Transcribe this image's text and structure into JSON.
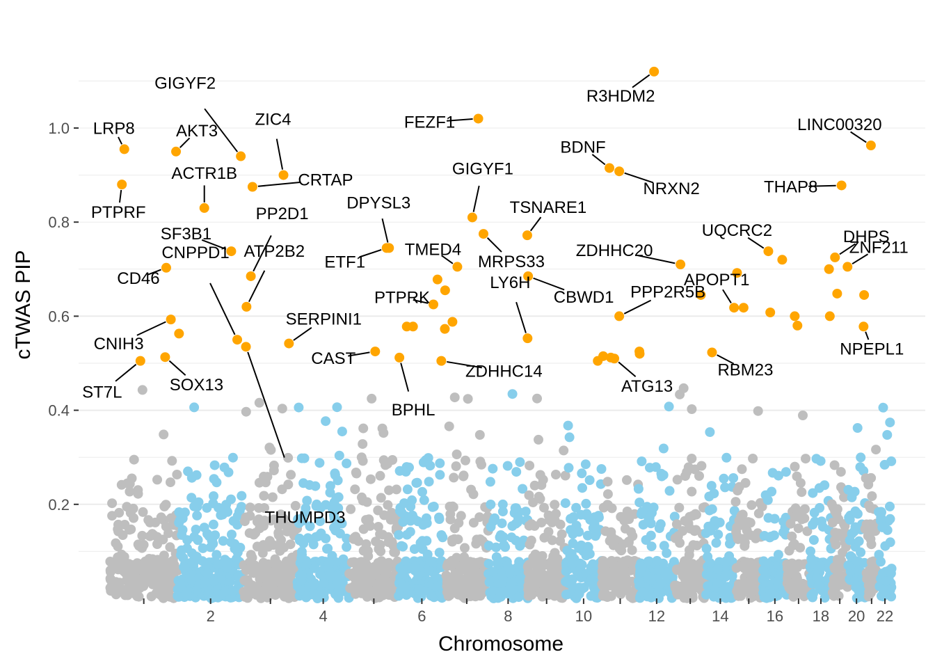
{
  "colors": {
    "odd_chromosome": "#bebebe",
    "even_chromosome": "#87ceeb",
    "highlight": "#ffa500",
    "grid": "#ebebeb",
    "axis_text": "#4d4d4d"
  },
  "chart_data": {
    "type": "scatter",
    "subtype": "manhattan",
    "title": "",
    "xlabel": "Chromosome",
    "ylabel": "cTWAS PIP",
    "ylim": [
      0,
      1.12
    ],
    "yticks": [
      0.2,
      0.4,
      0.6,
      0.8,
      1.0
    ],
    "ytick_labels": [
      "0.2",
      "0.4",
      "0.6",
      "0.8",
      "1.0"
    ],
    "xticks_labeled": [
      {
        "chr": 2,
        "label": "2"
      },
      {
        "chr": 4,
        "label": "4"
      },
      {
        "chr": 6,
        "label": "6"
      },
      {
        "chr": 8,
        "label": "8"
      },
      {
        "chr": 10,
        "label": "10"
      },
      {
        "chr": 12,
        "label": "12"
      },
      {
        "chr": 14,
        "label": "14"
      },
      {
        "chr": 16,
        "label": "16"
      },
      {
        "chr": 18,
        "label": "18"
      },
      {
        "chr": 20,
        "label": "20"
      },
      {
        "chr": 22,
        "label": "22"
      }
    ],
    "chromosome_span_mb": [
      {
        "chr": 1,
        "start": 0,
        "end": 249
      },
      {
        "chr": 2,
        "start": 249,
        "end": 491
      },
      {
        "chr": 3,
        "start": 491,
        "end": 689
      },
      {
        "chr": 4,
        "start": 689,
        "end": 879
      },
      {
        "chr": 5,
        "start": 879,
        "end": 1061
      },
      {
        "chr": 6,
        "start": 1061,
        "end": 1232
      },
      {
        "chr": 7,
        "start": 1232,
        "end": 1391
      },
      {
        "chr": 8,
        "start": 1391,
        "end": 1536
      },
      {
        "chr": 9,
        "start": 1536,
        "end": 1674
      },
      {
        "chr": 10,
        "start": 1674,
        "end": 1808
      },
      {
        "chr": 11,
        "start": 1808,
        "end": 1943
      },
      {
        "chr": 12,
        "start": 1943,
        "end": 2076
      },
      {
        "chr": 13,
        "start": 2076,
        "end": 2190
      },
      {
        "chr": 14,
        "start": 2190,
        "end": 2297
      },
      {
        "chr": 15,
        "start": 2297,
        "end": 2399
      },
      {
        "chr": 16,
        "start": 2399,
        "end": 2489
      },
      {
        "chr": 17,
        "start": 2489,
        "end": 2573
      },
      {
        "chr": 18,
        "start": 2573,
        "end": 2653
      },
      {
        "chr": 19,
        "start": 2653,
        "end": 2712
      },
      {
        "chr": 20,
        "start": 2712,
        "end": 2776
      },
      {
        "chr": 21,
        "start": 2776,
        "end": 2823
      },
      {
        "chr": 22,
        "start": 2823,
        "end": 2874
      }
    ],
    "highlight_threshold": 0.5,
    "background_points_note": "Dense background of genes with low PIP (mostly below 0.45), coloured alternately grey (odd chromosomes) and sky blue (even chromosomes).",
    "highlighted_genes": [
      {
        "gene": "LRP8",
        "chr": 1,
        "pos_mb": 53,
        "pip": 0.955,
        "label": "LRP8"
      },
      {
        "gene": "PTPRF",
        "chr": 1,
        "pos_mb": 44,
        "pip": 0.88,
        "label": "PTPRF"
      },
      {
        "gene": "CD46",
        "chr": 1,
        "pos_mb": 207,
        "pip": 0.703,
        "label": "CD46"
      },
      {
        "gene": "CNIH3",
        "chr": 1,
        "pos_mb": 224,
        "pip": 0.593,
        "label": "CNIH3"
      },
      {
        "gene": "ST7L",
        "chr": 1,
        "pos_mb": 112,
        "pip": 0.505,
        "label": "ST7L"
      },
      {
        "gene": "AKT3",
        "chr": 1,
        "pos_mb": 243,
        "pip": 0.95,
        "label": "AKT3"
      },
      {
        "gene": "SOX13",
        "chr": 1,
        "pos_mb": 203,
        "pip": 0.513,
        "label": "SOX13"
      },
      {
        "gene": "ACTR1B",
        "chr": 2,
        "pos_mb": 98,
        "pip": 0.83,
        "label": "ACTR1B"
      },
      {
        "gene": "SF3B1",
        "chr": 2,
        "pos_mb": 197,
        "pip": 0.738,
        "label": "SF3B1"
      },
      {
        "gene": "GIGYF2",
        "chr": 2,
        "pos_mb": 232,
        "pip": 0.94,
        "label": "GIGYF2"
      },
      {
        "gene": "CNPPD1",
        "chr": 2,
        "pos_mb": 219,
        "pip": 0.55,
        "label": "CNPPD1"
      },
      {
        "gene": "THUMPD3",
        "chr": 3,
        "pos_mb": 9,
        "pip": 0.535,
        "label": "THUMPD3"
      },
      {
        "gene": "CRTAP",
        "chr": 3,
        "pos_mb": 33,
        "pip": 0.875,
        "label": "CRTAP"
      },
      {
        "gene": "PP2D1",
        "chr": 3,
        "pos_mb": 27,
        "pip": 0.685,
        "label": "PP2D1"
      },
      {
        "gene": "ATP2B2",
        "chr": 3,
        "pos_mb": 11,
        "pip": 0.62,
        "label": "ATP2B2"
      },
      {
        "gene": "ZIC4",
        "chr": 3,
        "pos_mb": 147,
        "pip": 0.9,
        "label": "ZIC4"
      },
      {
        "gene": "SERPINI1",
        "chr": 3,
        "pos_mb": 167,
        "pip": 0.542,
        "label": "SERPINI1"
      },
      {
        "gene": "CAST",
        "chr": 5,
        "pos_mb": 96,
        "pip": 0.525,
        "label": "CAST"
      },
      {
        "gene": "DPYSL3",
        "chr": 5,
        "pos_mb": 147,
        "pip": 0.745,
        "label": "DPYSL3"
      },
      {
        "gene": "ETF1",
        "chr": 5,
        "pos_mb": 138,
        "pip": 0.745,
        "label": "ETF1"
      },
      {
        "gene": "BPHL",
        "chr": 6,
        "pos_mb": 3,
        "pip": 0.512,
        "label": "BPHL"
      },
      {
        "gene": "PTPRK",
        "chr": 6,
        "pos_mb": 128,
        "pip": 0.625,
        "label": "PTPRK"
      },
      {
        "gene": "TMED4",
        "chr": 7,
        "pos_mb": 45,
        "pip": 0.705,
        "label": "TMED4"
      },
      {
        "gene": "ZDHHC14",
        "chr": 6,
        "pos_mb": 157,
        "pip": 0.505,
        "label": "ZDHHC14"
      },
      {
        "gene": "FEZF1",
        "chr": 7,
        "pos_mb": 122,
        "pip": 1.02,
        "label": "FEZF1"
      },
      {
        "gene": "GIGYF1",
        "chr": 7,
        "pos_mb": 100,
        "pip": 0.81,
        "label": "GIGYF1"
      },
      {
        "gene": "MRPS33",
        "chr": 7,
        "pos_mb": 141,
        "pip": 0.775,
        "label": "MRPS33"
      },
      {
        "gene": "LY6H",
        "chr": 8,
        "pos_mb": 144,
        "pip": 0.553,
        "label": "LY6H"
      },
      {
        "gene": "TSNARE1",
        "chr": 8,
        "pos_mb": 143,
        "pip": 0.772,
        "label": "TSNARE1"
      },
      {
        "gene": "CBWD1",
        "chr": 9,
        "pos_mb": 1,
        "pip": 0.685,
        "label": "CBWD1"
      },
      {
        "gene": "BDNF",
        "chr": 11,
        "pos_mb": 28,
        "pip": 0.915,
        "label": "BDNF"
      },
      {
        "gene": "NRXN2",
        "chr": 11,
        "pos_mb": 64,
        "pip": 0.908,
        "label": "NRXN2"
      },
      {
        "gene": "PPP2R5B",
        "chr": 11,
        "pos_mb": 64,
        "pip": 0.6,
        "label": "PPP2R5B"
      },
      {
        "gene": "ATG13",
        "chr": 11,
        "pos_mb": 46,
        "pip": 0.51,
        "label": "ATG13"
      },
      {
        "gene": "R3HDM2",
        "chr": 12,
        "pos_mb": 57,
        "pip": 1.12,
        "label": "R3HDM2"
      },
      {
        "gene": "ZDHHC20",
        "chr": 13,
        "pos_mb": 21,
        "pip": 0.71,
        "label": "ZDHHC20"
      },
      {
        "gene": "RBM23",
        "chr": 14,
        "pos_mb": 23,
        "pip": 0.523,
        "label": "RBM23"
      },
      {
        "gene": "UQCRC2",
        "chr": 16,
        "pos_mb": 21,
        "pip": 0.738,
        "label": "UQCRC2"
      },
      {
        "gene": "APOPT1",
        "chr": 14,
        "pos_mb": 104,
        "pip": 0.618,
        "label": "APOPT1"
      },
      {
        "gene": "LINC00320",
        "chr": 21,
        "pos_mb": 21,
        "pip": 0.963,
        "label": "LINC00320"
      },
      {
        "gene": "THAP8",
        "chr": 19,
        "pos_mb": 36,
        "pip": 0.878,
        "label": "THAP8"
      },
      {
        "gene": "DHPS",
        "chr": 19,
        "pos_mb": 12,
        "pip": 0.725,
        "label": "DHPS"
      },
      {
        "gene": "ZNF211",
        "chr": 19,
        "pos_mb": 58,
        "pip": 0.705,
        "label": "ZNF211"
      },
      {
        "gene": "NPEPL1",
        "chr": 20,
        "pos_mb": 58,
        "pip": 0.578,
        "label": "NPEPL1"
      }
    ],
    "other_highlighted_points": [
      {
        "chr": 2,
        "pos_mb": 5,
        "pip": 0.563
      },
      {
        "chr": 6,
        "pos_mb": 30,
        "pip": 0.578
      },
      {
        "chr": 6,
        "pos_mb": 53,
        "pip": 0.578
      },
      {
        "chr": 6,
        "pos_mb": 143,
        "pip": 0.678
      },
      {
        "chr": 6,
        "pos_mb": 170,
        "pip": 0.573
      },
      {
        "chr": 7,
        "pos_mb": 0,
        "pip": 0.655
      },
      {
        "chr": 7,
        "pos_mb": 27,
        "pip": 0.588
      },
      {
        "chr": 10,
        "pos_mb": 119,
        "pip": 0.505
      },
      {
        "chr": 11,
        "pos_mb": 5,
        "pip": 0.515
      },
      {
        "chr": 11,
        "pos_mb": 33,
        "pip": 0.512
      },
      {
        "chr": 12,
        "pos_mb": 3,
        "pip": 0.525
      },
      {
        "chr": 12,
        "pos_mb": 4,
        "pip": 0.52
      },
      {
        "chr": 13,
        "pos_mb": 96,
        "pip": 0.645
      },
      {
        "chr": 15,
        "pos_mb": 8,
        "pip": 0.692
      },
      {
        "chr": 15,
        "pos_mb": 32,
        "pip": 0.618
      },
      {
        "chr": 16,
        "pos_mb": 28,
        "pip": 0.608
      },
      {
        "chr": 16,
        "pos_mb": 72,
        "pip": 0.72
      },
      {
        "chr": 17,
        "pos_mb": 28,
        "pip": 0.6
      },
      {
        "chr": 17,
        "pos_mb": 38,
        "pip": 0.58
      },
      {
        "chr": 18,
        "pos_mb": 70,
        "pip": 0.7
      },
      {
        "chr": 18,
        "pos_mb": 73,
        "pip": 0.6
      },
      {
        "chr": 19,
        "pos_mb": 20,
        "pip": 0.648
      },
      {
        "chr": 20,
        "pos_mb": 60,
        "pip": 0.645
      }
    ]
  }
}
